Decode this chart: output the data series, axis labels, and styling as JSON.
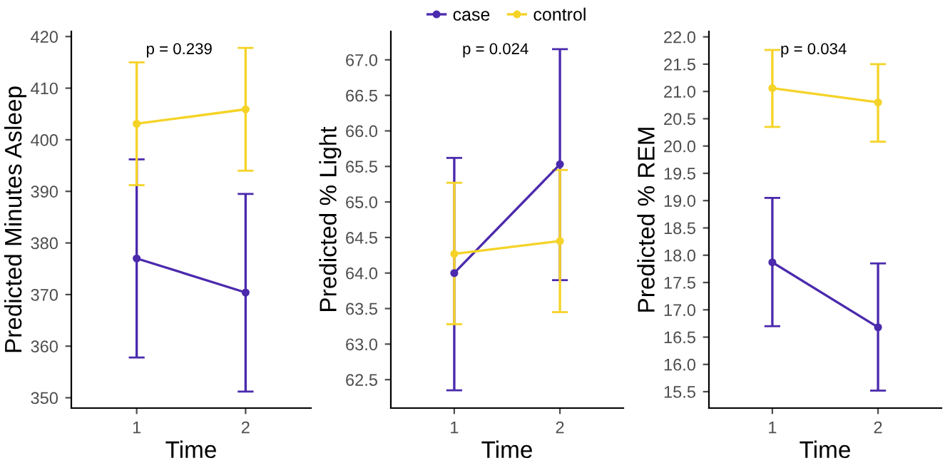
{
  "chart_data": [
    {
      "type": "line",
      "categories": [
        "1",
        "2"
      ],
      "xlabel": "Time",
      "ylabel": "Predicted Minutes Asleep",
      "ylim": [
        348,
        421
      ],
      "yticks": [
        350,
        360,
        370,
        380,
        390,
        400,
        410,
        420
      ],
      "marker": "circle",
      "grid": false,
      "legend": false,
      "annotations": [
        "p = 0.239"
      ],
      "series": [
        {
          "color": "#4b2aad",
          "values": [
            377.0,
            370.4
          ],
          "errors": [
            [
              357.8,
              396.2
            ],
            [
              351.2,
              389.5
            ]
          ]
        },
        {
          "color": "#f5d327",
          "values": [
            403.1,
            405.9
          ],
          "errors": [
            [
              391.2,
              415.0
            ],
            [
              394.0,
              417.8
            ]
          ]
        }
      ]
    },
    {
      "type": "line",
      "categories": [
        "1",
        "2"
      ],
      "xlabel": "Time",
      "ylabel": "Predicted % Light",
      "ylim": [
        62.1,
        67.4
      ],
      "yticks": [
        {
          "value": 62.5,
          "label": "62.5"
        },
        {
          "value": 63,
          "label": "63.0"
        },
        {
          "value": 63.5,
          "label": "63.5"
        },
        {
          "value": 64,
          "label": "64.0"
        },
        {
          "value": 64.5,
          "label": "64.5"
        },
        {
          "value": 65,
          "label": "65.0"
        },
        {
          "value": 65.5,
          "label": "65.5"
        },
        {
          "value": 66,
          "label": "66.0"
        },
        {
          "value": 66.5,
          "label": "66.5"
        },
        {
          "value": 67,
          "label": "67.0"
        }
      ],
      "marker": "circle",
      "grid": false,
      "legend": "top",
      "annotations": [
        "p = 0.024"
      ],
      "series": [
        {
          "name": "case",
          "color": "#4b2aad",
          "values": [
            64.0,
            65.53
          ],
          "errors": [
            [
              62.35,
              65.62
            ],
            [
              63.9,
              67.15
            ]
          ]
        },
        {
          "name": "control",
          "color": "#f5d327",
          "values": [
            64.27,
            64.45
          ],
          "errors": [
            [
              63.28,
              65.27
            ],
            [
              63.45,
              65.45
            ]
          ]
        }
      ]
    },
    {
      "type": "line",
      "categories": [
        "1",
        "2"
      ],
      "xlabel": "Time",
      "ylabel": "Predicted % REM",
      "ylim": [
        15.2,
        22.1
      ],
      "yticks": [
        {
          "value": 15.5,
          "label": "15.5"
        },
        {
          "value": 16,
          "label": "16.0"
        },
        {
          "value": 16.5,
          "label": "16.5"
        },
        {
          "value": 17,
          "label": "17.0"
        },
        {
          "value": 17.5,
          "label": "17.5"
        },
        {
          "value": 18,
          "label": "18.0"
        },
        {
          "value": 18.5,
          "label": "18.5"
        },
        {
          "value": 19,
          "label": "19.0"
        },
        {
          "value": 19.5,
          "label": "19.5"
        },
        {
          "value": 20,
          "label": "20.0"
        },
        {
          "value": 20.5,
          "label": "20.5"
        },
        {
          "value": 21,
          "label": "21.0"
        },
        {
          "value": 21.5,
          "label": "21.5"
        },
        {
          "value": 22,
          "label": "22.0"
        }
      ],
      "marker": "circle",
      "grid": false,
      "legend": false,
      "annotations": [
        "p = 0.034"
      ],
      "series": [
        {
          "color": "#4b2aad",
          "values": [
            17.87,
            16.68
          ],
          "errors": [
            [
              16.7,
              19.05
            ],
            [
              15.52,
              17.85
            ]
          ]
        },
        {
          "color": "#f5d327",
          "values": [
            21.06,
            20.8
          ],
          "errors": [
            [
              20.35,
              21.76
            ],
            [
              20.08,
              21.5
            ]
          ]
        }
      ]
    }
  ]
}
